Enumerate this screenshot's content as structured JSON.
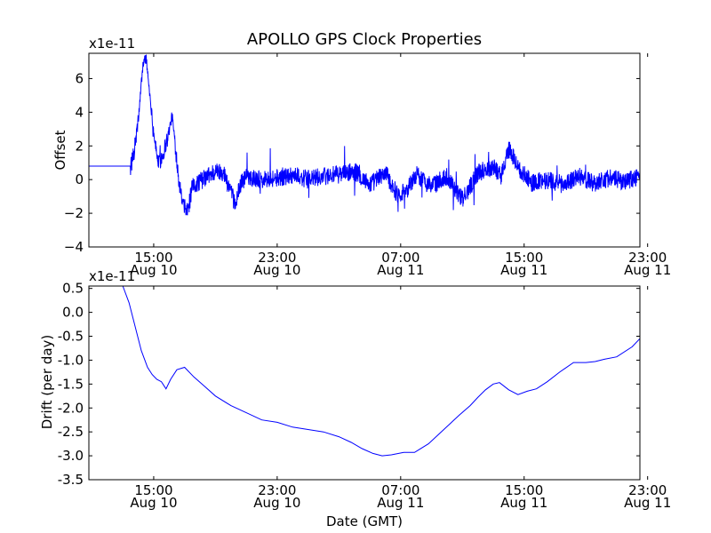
{
  "figure": {
    "title": "APOLLO GPS Clock Properties",
    "xlabel": "Date (GMT)"
  },
  "colors": {
    "line": "#0000ff",
    "axes": "#000000",
    "background": "#ffffff"
  },
  "chart_data": [
    {
      "type": "line",
      "name": "offset",
      "ylabel": "Offset",
      "scale_label": "x1e-11",
      "x_unit": "hours since Aug 10 00:00 GMT",
      "xlim": [
        10.8,
        46.5
      ],
      "ylim": [
        -4,
        7.5
      ],
      "yticks": [
        6,
        4,
        2,
        0,
        -2,
        -4
      ],
      "ytick_labels": [
        "6",
        "4",
        "2",
        "0",
        "−2",
        "−4"
      ],
      "xticks": [
        15,
        23,
        31,
        39,
        47
      ],
      "xtick_labels": [
        [
          "15:00",
          "Aug 10"
        ],
        [
          "23:00",
          "Aug 10"
        ],
        [
          "07:00",
          "Aug 11"
        ],
        [
          "15:00",
          "Aug 11"
        ],
        [
          "23:00",
          "Aug 11"
        ]
      ],
      "noise_amplitude": 0.55,
      "x": [
        10.8,
        13.5,
        13.7,
        14.0,
        14.3,
        14.5,
        14.7,
        15.0,
        15.3,
        15.6,
        15.9,
        16.2,
        16.4,
        16.7,
        16.9,
        17.2,
        17.5,
        17.8,
        18.2,
        18.8,
        19.5,
        20.0,
        20.3,
        20.6,
        21.0,
        22.0,
        23.0,
        24.0,
        25.0,
        26.0,
        27.0,
        28.0,
        29.0,
        30.0,
        30.8,
        31.4,
        32.0,
        33.0,
        34.0,
        35.0,
        36.0,
        37.0,
        37.5,
        38.0,
        38.8,
        39.5,
        40.5,
        41.5,
        42.5,
        43.5,
        44.5,
        45.5,
        46.5
      ],
      "values": [
        0.8,
        0.8,
        1.4,
        3.5,
        6.8,
        7.3,
        5.5,
        2.8,
        0.9,
        1.5,
        2.5,
        3.8,
        2.0,
        -0.5,
        -1.6,
        -1.9,
        -0.5,
        -0.2,
        0.0,
        0.4,
        0.5,
        -0.8,
        -1.5,
        -0.3,
        0.2,
        0.0,
        0.1,
        0.3,
        0.0,
        0.2,
        0.3,
        0.5,
        -0.3,
        0.4,
        -0.9,
        -0.6,
        0.3,
        -0.4,
        0.2,
        -1.2,
        0.4,
        0.8,
        0.2,
        1.8,
        0.5,
        -0.2,
        0.0,
        -0.3,
        0.2,
        -0.2,
        0.1,
        -0.1,
        0.2
      ]
    },
    {
      "type": "line",
      "name": "drift",
      "ylabel": "Drift (per day)",
      "scale_label": "x1e-11",
      "x_unit": "hours since Aug 10 00:00 GMT",
      "xlim": [
        10.8,
        46.5
      ],
      "ylim": [
        -3.5,
        0.55
      ],
      "yticks": [
        0.5,
        0.0,
        -0.5,
        -1.0,
        -1.5,
        -2.0,
        -2.5,
        -3.0,
        -3.5
      ],
      "ytick_labels": [
        "0.5",
        "0.0",
        "-0.5",
        "-1.0",
        "-1.5",
        "-2.0",
        "-2.5",
        "-3.0",
        "-3.5"
      ],
      "xticks": [
        15,
        23,
        31,
        39,
        47
      ],
      "xtick_labels": [
        [
          "15:00",
          "Aug 10"
        ],
        [
          "23:00",
          "Aug 10"
        ],
        [
          "07:00",
          "Aug 11"
        ],
        [
          "15:00",
          "Aug 11"
        ],
        [
          "23:00",
          "Aug 11"
        ]
      ],
      "x": [
        13.0,
        13.4,
        13.8,
        14.2,
        14.6,
        14.9,
        15.2,
        15.5,
        15.8,
        16.1,
        16.5,
        17.0,
        17.6,
        18.3,
        19.0,
        20.0,
        21.0,
        22.0,
        23.0,
        24.0,
        25.0,
        26.0,
        27.0,
        27.8,
        28.5,
        29.2,
        29.8,
        30.4,
        31.2,
        31.9,
        32.8,
        33.8,
        34.8,
        35.5,
        36.0,
        36.5,
        37.0,
        37.4,
        38.0,
        38.6,
        39.2,
        39.8,
        40.5,
        41.3,
        42.2,
        43.0,
        43.6,
        44.2,
        45.0,
        46.0,
        46.5
      ],
      "values": [
        0.55,
        0.2,
        -0.3,
        -0.8,
        -1.15,
        -1.3,
        -1.4,
        -1.45,
        -1.6,
        -1.4,
        -1.2,
        -1.15,
        -1.35,
        -1.55,
        -1.75,
        -1.95,
        -2.1,
        -2.25,
        -2.3,
        -2.4,
        -2.45,
        -2.5,
        -2.6,
        -2.72,
        -2.85,
        -2.95,
        -3.0,
        -2.98,
        -2.93,
        -2.93,
        -2.75,
        -2.45,
        -2.15,
        -1.95,
        -1.78,
        -1.62,
        -1.5,
        -1.47,
        -1.62,
        -1.72,
        -1.65,
        -1.6,
        -1.45,
        -1.25,
        -1.05,
        -1.05,
        -1.03,
        -0.98,
        -0.93,
        -0.72,
        -0.55
      ]
    }
  ]
}
